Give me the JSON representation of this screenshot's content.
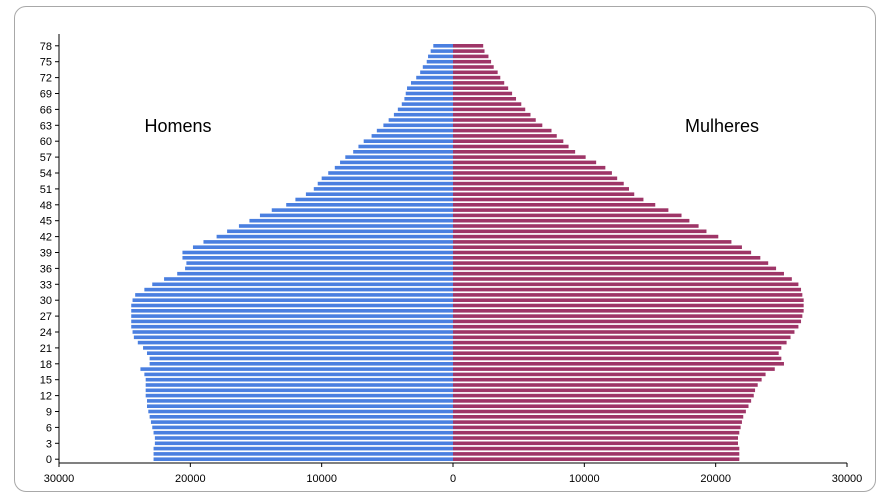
{
  "chart_data": {
    "type": "bar",
    "orientation": "horizontal-population-pyramid",
    "ages": [
      0,
      1,
      2,
      3,
      4,
      5,
      6,
      7,
      8,
      9,
      10,
      11,
      12,
      13,
      14,
      15,
      16,
      17,
      18,
      19,
      20,
      21,
      22,
      23,
      24,
      25,
      26,
      27,
      28,
      29,
      30,
      31,
      32,
      33,
      34,
      35,
      36,
      37,
      38,
      39,
      40,
      41,
      42,
      43,
      44,
      45,
      46,
      47,
      48,
      49,
      50,
      51,
      52,
      53,
      54,
      55,
      56,
      57,
      58,
      59,
      60,
      61,
      62,
      63,
      64,
      65,
      66,
      67,
      68,
      69,
      70,
      71,
      72,
      73,
      74,
      75,
      76,
      77,
      78
    ],
    "y_tick_labels": [
      "0",
      "3",
      "6",
      "9",
      "12",
      "15",
      "18",
      "21",
      "24",
      "27",
      "30",
      "33",
      "36",
      "39",
      "42",
      "45",
      "48",
      "51",
      "54",
      "57",
      "60",
      "63",
      "66",
      "69",
      "72",
      "75",
      "78"
    ],
    "x_tick_labels": [
      "30000",
      "20000",
      "10000",
      "0",
      "10000",
      "20000",
      "30000"
    ],
    "xlim": [
      -30000,
      30000
    ],
    "series": [
      {
        "name": "Homens",
        "color": "#4a7fe0",
        "side": "left",
        "values": [
          22800,
          22800,
          22800,
          22700,
          22700,
          22800,
          22900,
          23000,
          23100,
          23200,
          23300,
          23300,
          23400,
          23400,
          23400,
          23400,
          23500,
          23800,
          23100,
          23100,
          23300,
          23600,
          24000,
          24300,
          24400,
          24500,
          24500,
          24500,
          24500,
          24500,
          24400,
          24200,
          23500,
          22900,
          22000,
          21000,
          20400,
          20300,
          20600,
          20600,
          19800,
          19000,
          18000,
          17200,
          16300,
          15500,
          14700,
          13800,
          12700,
          12000,
          11200,
          10600,
          10300,
          10000,
          9500,
          9000,
          8600,
          8200,
          7600,
          7200,
          6800,
          6200,
          5800,
          5300,
          4900,
          4500,
          4200,
          3900,
          3700,
          3600,
          3500,
          3200,
          2800,
          2500,
          2300,
          2000,
          1900,
          1700,
          1500
        ]
      },
      {
        "name": "Mulheres",
        "color": "#9e3567",
        "side": "right",
        "values": [
          21800,
          21800,
          21800,
          21700,
          21700,
          21800,
          21900,
          22000,
          22100,
          22300,
          22500,
          22700,
          22900,
          23000,
          23200,
          23500,
          23800,
          24500,
          25200,
          25000,
          24800,
          25000,
          25400,
          25700,
          26000,
          26300,
          26500,
          26600,
          26700,
          26700,
          26700,
          26600,
          26500,
          26300,
          25800,
          25200,
          24600,
          24000,
          23400,
          22700,
          22000,
          21200,
          20200,
          19300,
          18700,
          18000,
          17400,
          16400,
          15400,
          14500,
          13800,
          13400,
          13000,
          12500,
          12100,
          11600,
          10900,
          10100,
          9300,
          8800,
          8400,
          7900,
          7500,
          6800,
          6300,
          5900,
          5500,
          5200,
          4800,
          4500,
          4200,
          3900,
          3600,
          3400,
          3100,
          2900,
          2700,
          2400,
          2300
        ]
      }
    ],
    "annotations": {
      "left": "Homens",
      "right": "Mulheres"
    }
  }
}
